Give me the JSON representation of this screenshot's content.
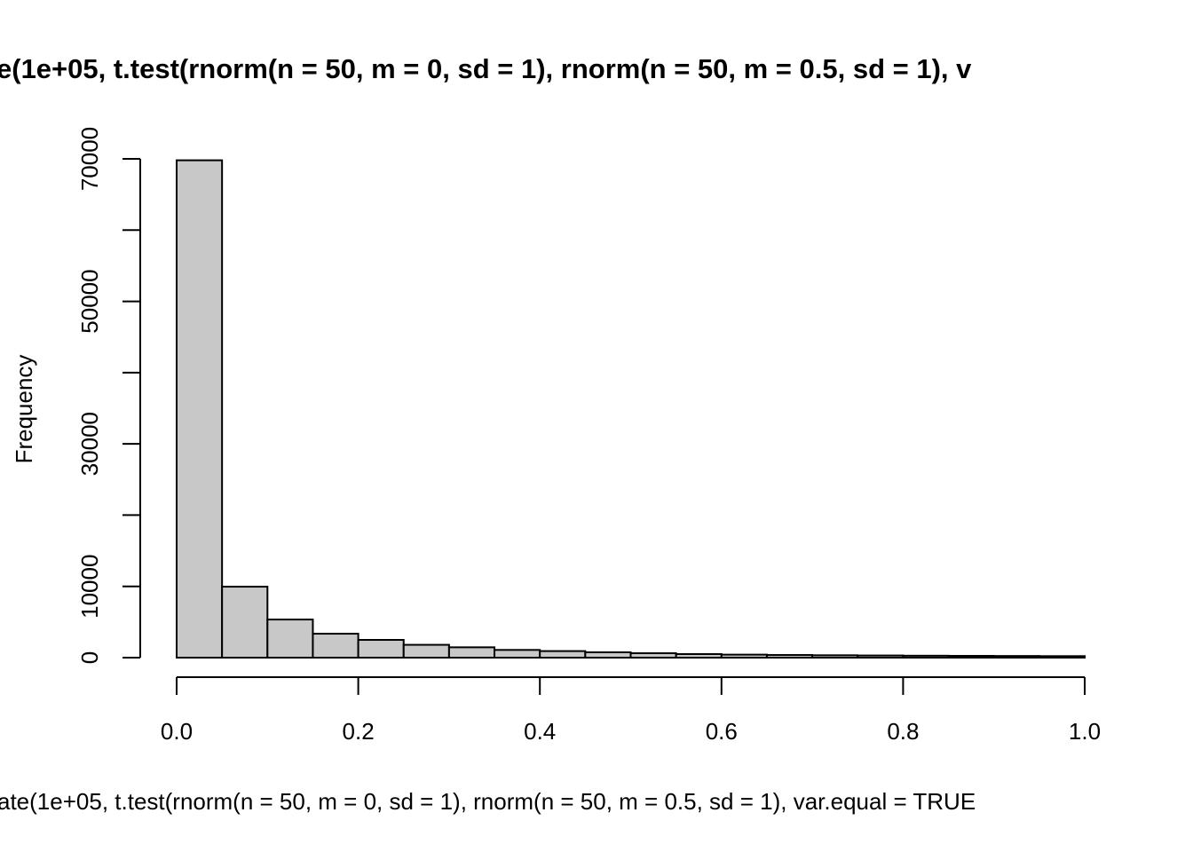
{
  "chart_data": {
    "type": "bar",
    "title": "e(1e+05, t.test(rnorm(n = 50, m = 0, sd = 1), rnorm(n = 50, m = 0.5, sd = 1), v",
    "xlabel": "ate(1e+05, t.test(rnorm(n = 50, m = 0, sd = 1), rnorm(n = 50, m = 0.5, sd = 1), var.equal = TRUE",
    "ylabel": "Frequency",
    "bin_edges": [
      0,
      0.05,
      0.1,
      0.15,
      0.2,
      0.25,
      0.3,
      0.35,
      0.4,
      0.45,
      0.5,
      0.55,
      0.6,
      0.65,
      0.7,
      0.75,
      0.8,
      0.85,
      0.9,
      0.95,
      1.0
    ],
    "values": [
      69800,
      9960,
      5350,
      3360,
      2490,
      1800,
      1450,
      1080,
      920,
      750,
      620,
      500,
      420,
      370,
      330,
      300,
      270,
      250,
      230,
      210
    ],
    "xlim": [
      0,
      1
    ],
    "ylim": [
      0,
      70000
    ],
    "xticks": [
      0,
      0.2,
      0.4,
      0.6,
      0.8,
      1.0
    ],
    "xtick_labels": [
      "0.0",
      "0.2",
      "0.4",
      "0.6",
      "0.8",
      "1.0"
    ],
    "yticks": [
      0,
      10000,
      20000,
      30000,
      40000,
      50000,
      60000,
      70000
    ],
    "ytick_labels": [
      "0",
      "10000",
      "30000",
      "50000",
      "70000"
    ],
    "ytick_label_values": [
      0,
      10000,
      30000,
      50000,
      70000
    ],
    "bar_fill": "#c8c8c8",
    "grid": false
  }
}
